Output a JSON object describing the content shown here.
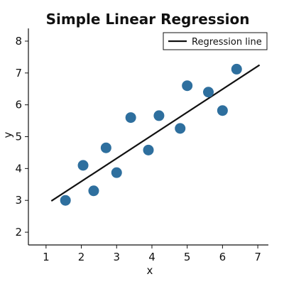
{
  "chart_data": {
    "type": "scatter",
    "title": "Simple Linear Regression",
    "xlabel": "x",
    "ylabel": "y",
    "xlim": [
      0.5,
      7.3
    ],
    "ylim": [
      1.6,
      8.4
    ],
    "xticks": [
      1,
      2,
      3,
      4,
      5,
      6,
      7
    ],
    "yticks": [
      2,
      3,
      4,
      5,
      6,
      7,
      8
    ],
    "grid": false,
    "legend_position": "top-right",
    "points": [
      {
        "x": 1.55,
        "y": 3.0
      },
      {
        "x": 2.05,
        "y": 4.1
      },
      {
        "x": 2.35,
        "y": 3.3
      },
      {
        "x": 2.7,
        "y": 4.65
      },
      {
        "x": 3.0,
        "y": 3.87
      },
      {
        "x": 3.4,
        "y": 5.6
      },
      {
        "x": 3.9,
        "y": 4.58
      },
      {
        "x": 4.2,
        "y": 5.66
      },
      {
        "x": 4.8,
        "y": 5.26
      },
      {
        "x": 5.0,
        "y": 6.6
      },
      {
        "x": 5.6,
        "y": 6.4
      },
      {
        "x": 6.0,
        "y": 5.82
      },
      {
        "x": 6.4,
        "y": 7.12
      }
    ],
    "regression_line": {
      "name": "Regression line",
      "x": [
        1.15,
        7.05
      ],
      "y": [
        2.98,
        7.25
      ]
    },
    "colors": {
      "points": "#2e6f9e",
      "line": "#111111",
      "axes": "#111111"
    }
  }
}
